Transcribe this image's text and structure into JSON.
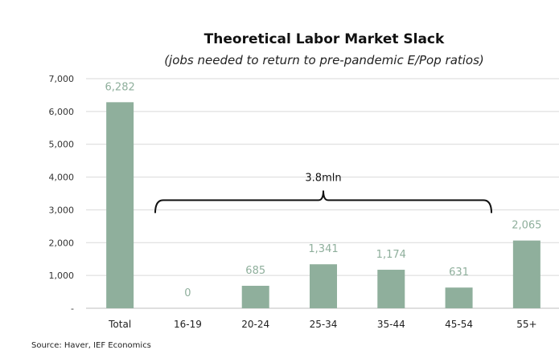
{
  "chart_data": {
    "type": "bar",
    "title": "Theoretical Labor Market Slack",
    "subtitle": "(jobs needed to return to pre-pandemic  E/Pop ratios)",
    "categories": [
      "Total",
      "16-19",
      "20-24",
      "25-34",
      "35-44",
      "45-54",
      "55+"
    ],
    "values": [
      6282,
      0,
      685,
      1341,
      1174,
      631,
      2065
    ],
    "data_labels": [
      "6,282",
      "0",
      "685",
      "1,341",
      "1,174",
      "631",
      "2,065"
    ],
    "ylim": [
      0,
      7000
    ],
    "yticks": [
      0,
      1000,
      2000,
      3000,
      4000,
      5000,
      6000,
      7000
    ],
    "ytick_labels": [
      "-",
      "1,000",
      "2,000",
      "3,000",
      "4,000",
      "5,000",
      "6,000",
      "7,000"
    ],
    "xlabel": "",
    "ylabel": "",
    "grid": true,
    "legend": "none",
    "bar_color": "#8faf9c",
    "label_color": "#8faf9c",
    "annotation": {
      "text": "3.8mln",
      "spans": [
        "16-19",
        "45-54"
      ],
      "level": 3000
    },
    "source": "Source: Haver, IEF Economics"
  }
}
